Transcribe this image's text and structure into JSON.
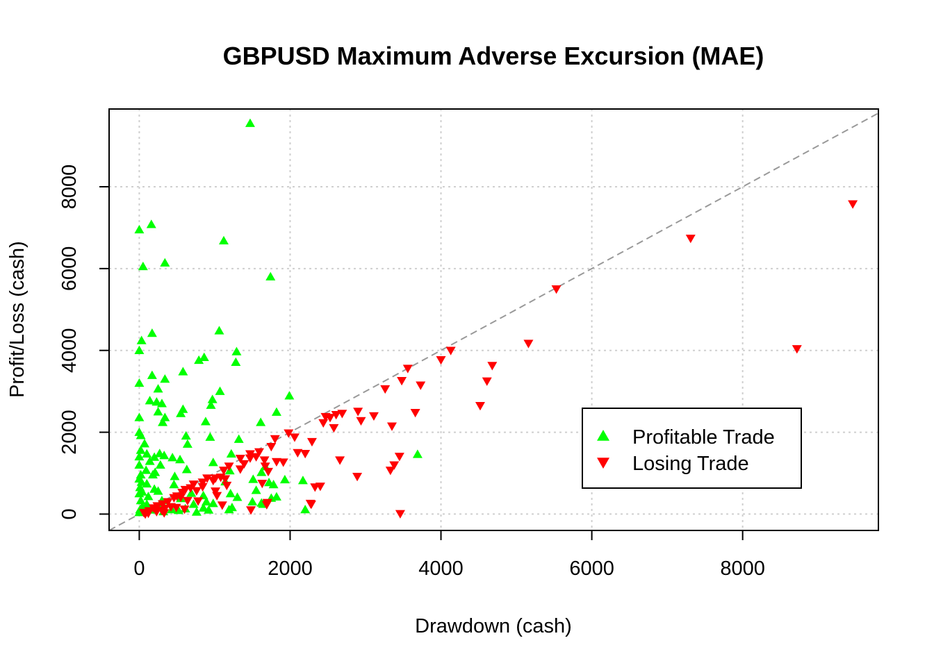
{
  "chart_data": {
    "type": "scatter",
    "title": "GBPUSD Maximum Adverse Excursion (MAE)",
    "xlabel": "Drawdown (cash)",
    "ylabel": "Profit/Loss (cash)",
    "xlim": [
      -400,
      9800
    ],
    "ylim": [
      -400,
      9900
    ],
    "xticks": [
      0,
      2000,
      4000,
      6000,
      8000
    ],
    "yticks": [
      0,
      2000,
      4000,
      6000,
      8000
    ],
    "grid": true,
    "reference_line": {
      "type": "y=x",
      "style": "dashed",
      "color": "#999999"
    },
    "legend": {
      "placement": "bottom-right",
      "entries": [
        {
          "label": "Profitable Trade",
          "symbol": "triangle-up",
          "color": "#00ff00"
        },
        {
          "label": "Losing Trade",
          "symbol": "triangle-down",
          "color": "#ff0000"
        }
      ]
    },
    "series": [
      {
        "name": "Profitable Trade",
        "color": "#00ff00",
        "marker": "triangle-up",
        "points": [
          [
            1470,
            9550
          ],
          [
            0,
            6950
          ],
          [
            160,
            7080
          ],
          [
            1120,
            6680
          ],
          [
            50,
            6050
          ],
          [
            340,
            6140
          ],
          [
            1740,
            5800
          ],
          [
            1060,
            4480
          ],
          [
            170,
            4420
          ],
          [
            30,
            4240
          ],
          [
            0,
            4000
          ],
          [
            1290,
            3970
          ],
          [
            860,
            3830
          ],
          [
            790,
            3760
          ],
          [
            1280,
            3710
          ],
          [
            580,
            3480
          ],
          [
            170,
            3390
          ],
          [
            340,
            3300
          ],
          [
            0,
            3200
          ],
          [
            250,
            3060
          ],
          [
            1070,
            3000
          ],
          [
            1990,
            2890
          ],
          [
            970,
            2800
          ],
          [
            140,
            2770
          ],
          [
            230,
            2740
          ],
          [
            300,
            2700
          ],
          [
            950,
            2660
          ],
          [
            580,
            2560
          ],
          [
            250,
            2500
          ],
          [
            1820,
            2490
          ],
          [
            550,
            2460
          ],
          [
            340,
            2360
          ],
          [
            0,
            2360
          ],
          [
            880,
            2260
          ],
          [
            310,
            2240
          ],
          [
            1610,
            2240
          ],
          [
            0,
            2000
          ],
          [
            20,
            1920
          ],
          [
            620,
            1910
          ],
          [
            940,
            1880
          ],
          [
            1320,
            1830
          ],
          [
            70,
            1720
          ],
          [
            640,
            1710
          ],
          [
            20,
            1560
          ],
          [
            1220,
            1470
          ],
          [
            100,
            1470
          ],
          [
            270,
            1480
          ],
          [
            3690,
            1460
          ],
          [
            330,
            1430
          ],
          [
            0,
            1400
          ],
          [
            200,
            1390
          ],
          [
            440,
            1380
          ],
          [
            540,
            1330
          ],
          [
            140,
            1290
          ],
          [
            980,
            1260
          ],
          [
            0,
            1200
          ],
          [
            280,
            1200
          ],
          [
            1670,
            1160
          ],
          [
            90,
            1070
          ],
          [
            630,
            1090
          ],
          [
            1200,
            1060
          ],
          [
            210,
            1020
          ],
          [
            1620,
            1020
          ],
          [
            20,
            960
          ],
          [
            180,
            960
          ],
          [
            470,
            920
          ],
          [
            1930,
            840
          ],
          [
            2170,
            820
          ],
          [
            0,
            860
          ],
          [
            1510,
            850
          ],
          [
            30,
            780
          ],
          [
            1140,
            790
          ],
          [
            1720,
            770
          ],
          [
            100,
            740
          ],
          [
            460,
            720
          ],
          [
            1780,
            720
          ],
          [
            10,
            650
          ],
          [
            200,
            610
          ],
          [
            1550,
            580
          ],
          [
            40,
            540
          ],
          [
            250,
            560
          ],
          [
            690,
            510
          ],
          [
            1210,
            500
          ],
          [
            0,
            500
          ],
          [
            850,
            450
          ],
          [
            120,
            430
          ],
          [
            1820,
            420
          ],
          [
            1300,
            410
          ],
          [
            1750,
            390
          ],
          [
            550,
            380
          ],
          [
            20,
            330
          ],
          [
            300,
            330
          ],
          [
            890,
            300
          ],
          [
            1500,
            300
          ],
          [
            1620,
            270
          ],
          [
            100,
            240
          ],
          [
            720,
            240
          ],
          [
            1640,
            240
          ],
          [
            980,
            260
          ],
          [
            40,
            180
          ],
          [
            260,
            180
          ],
          [
            850,
            150
          ],
          [
            1230,
            160
          ],
          [
            10,
            110
          ],
          [
            180,
            100
          ],
          [
            430,
            110
          ],
          [
            2200,
            110
          ],
          [
            520,
            90
          ],
          [
            920,
            100
          ],
          [
            1190,
            110
          ],
          [
            610,
            130
          ],
          [
            0,
            40
          ],
          [
            320,
            60
          ],
          [
            760,
            50
          ]
        ]
      },
      {
        "name": "Losing Trade",
        "color": "#ff0000",
        "marker": "triangle-down",
        "points": [
          [
            9460,
            7580
          ],
          [
            7310,
            6740
          ],
          [
            5530,
            5500
          ],
          [
            5160,
            4170
          ],
          [
            8720,
            4040
          ],
          [
            4130,
            4000
          ],
          [
            4000,
            3770
          ],
          [
            4680,
            3630
          ],
          [
            3560,
            3560
          ],
          [
            3480,
            3260
          ],
          [
            4610,
            3250
          ],
          [
            3260,
            3060
          ],
          [
            3730,
            3150
          ],
          [
            4520,
            2650
          ],
          [
            2690,
            2460
          ],
          [
            2610,
            2430
          ],
          [
            3660,
            2480
          ],
          [
            2900,
            2510
          ],
          [
            2470,
            2380
          ],
          [
            3110,
            2400
          ],
          [
            2530,
            2360
          ],
          [
            2940,
            2280
          ],
          [
            2440,
            2230
          ],
          [
            3350,
            2150
          ],
          [
            2580,
            2110
          ],
          [
            1980,
            1980
          ],
          [
            1800,
            1840
          ],
          [
            2060,
            1880
          ],
          [
            2290,
            1770
          ],
          [
            1750,
            1650
          ],
          [
            2100,
            1500
          ],
          [
            1590,
            1520
          ],
          [
            1470,
            1470
          ],
          [
            1550,
            1400
          ],
          [
            2200,
            1480
          ],
          [
            1470,
            1370
          ],
          [
            1910,
            1270
          ],
          [
            1340,
            1360
          ],
          [
            3450,
            1410
          ],
          [
            1820,
            1280
          ],
          [
            1660,
            1320
          ],
          [
            1670,
            1170
          ],
          [
            1390,
            1230
          ],
          [
            1190,
            1170
          ],
          [
            1120,
            1070
          ],
          [
            1710,
            1040
          ],
          [
            2660,
            1320
          ],
          [
            1340,
            1100
          ],
          [
            3380,
            1200
          ],
          [
            3330,
            1070
          ],
          [
            2890,
            920
          ],
          [
            1080,
            900
          ],
          [
            1140,
            860
          ],
          [
            900,
            880
          ],
          [
            1010,
            880
          ],
          [
            980,
            820
          ],
          [
            840,
            780
          ],
          [
            1630,
            750
          ],
          [
            720,
            730
          ],
          [
            1160,
            700
          ],
          [
            840,
            670
          ],
          [
            2400,
            680
          ],
          [
            2330,
            660
          ],
          [
            680,
            640
          ],
          [
            610,
            600
          ],
          [
            1010,
            560
          ],
          [
            570,
            530
          ],
          [
            760,
            570
          ],
          [
            2270,
            260
          ],
          [
            1700,
            280
          ],
          [
            1690,
            230
          ],
          [
            1100,
            220
          ],
          [
            500,
            440
          ],
          [
            460,
            400
          ],
          [
            1030,
            450
          ],
          [
            550,
            410
          ],
          [
            380,
            300
          ],
          [
            640,
            330
          ],
          [
            780,
            320
          ],
          [
            310,
            250
          ],
          [
            2280,
            240
          ],
          [
            1480,
            100
          ],
          [
            490,
            160
          ],
          [
            240,
            200
          ],
          [
            420,
            180
          ],
          [
            340,
            140
          ],
          [
            190,
            150
          ],
          [
            600,
            120
          ],
          [
            300,
            90
          ],
          [
            130,
            80
          ],
          [
            230,
            60
          ],
          [
            60,
            40
          ],
          [
            120,
            20
          ],
          [
            330,
            30
          ],
          [
            3460,
            10
          ],
          [
            80,
            0
          ]
        ]
      }
    ]
  }
}
